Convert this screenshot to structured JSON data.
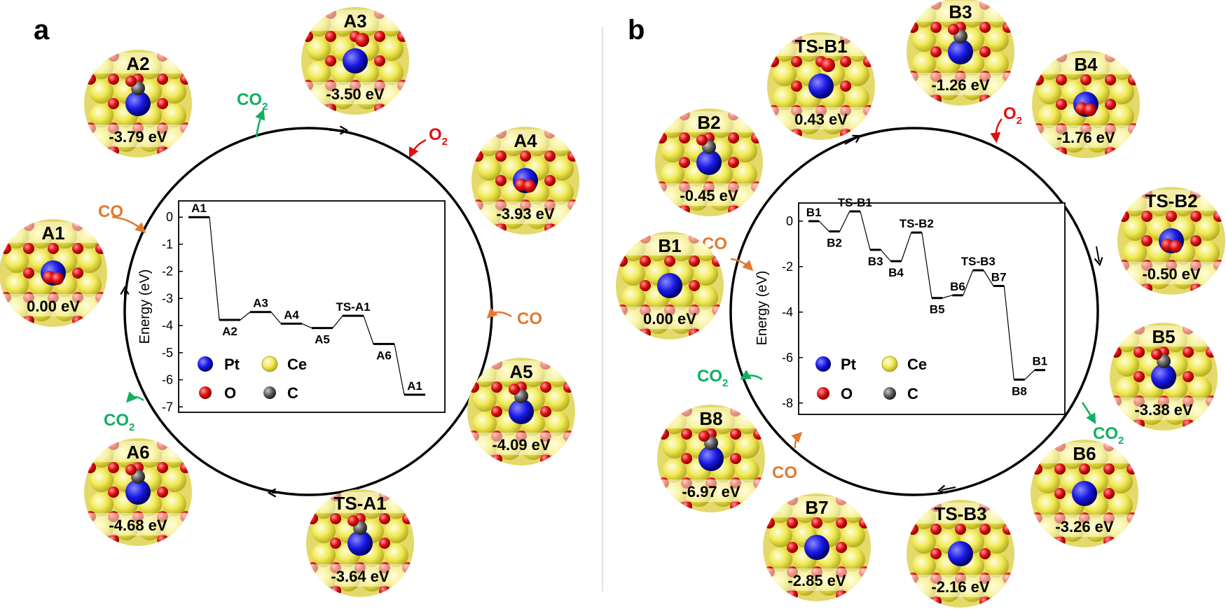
{
  "colors": {
    "pt": "#1a1ae6",
    "ce": "#f2ee5a",
    "o": "#e01010",
    "c": "#606060",
    "co": "#e07a30",
    "co2": "#10b060",
    "o2": "#e01010"
  },
  "legend": {
    "pt": "Pt",
    "ce": "Ce",
    "o": "O",
    "c": "C"
  },
  "molecules": {
    "co": "CO",
    "co2_base": "CO",
    "co2_sub": "2",
    "o2_base": "O",
    "o2_sub": "2"
  },
  "panel_a": {
    "letter": "a",
    "states": [
      {
        "name": "A1",
        "energy": "0.00 eV",
        "adsorbate": "o2"
      },
      {
        "name": "A2",
        "energy": "-3.79 eV",
        "adsorbate": "co"
      },
      {
        "name": "A3",
        "energy": "-3.50 eV",
        "adsorbate": "o"
      },
      {
        "name": "A4",
        "energy": "-3.93 eV",
        "adsorbate": "o2"
      },
      {
        "name": "A5",
        "energy": "-4.09 eV",
        "adsorbate": "co"
      },
      {
        "name": "TS-A1",
        "energy": "-3.64 eV",
        "adsorbate": "co"
      },
      {
        "name": "A6",
        "energy": "-4.68 eV",
        "adsorbate": "co"
      }
    ],
    "chart_data": {
      "type": "line",
      "ylabel": "Energy (eV)",
      "ylim": [
        -7.2,
        0.6
      ],
      "yticks": [
        0,
        -1,
        -2,
        -3,
        -4,
        -5,
        -6,
        -7
      ],
      "levels": [
        {
          "label": "A1",
          "value": 0.0
        },
        {
          "label": "A2",
          "value": -3.79
        },
        {
          "label": "A3",
          "value": -3.5
        },
        {
          "label": "A4",
          "value": -3.93
        },
        {
          "label": "A5",
          "value": -4.09
        },
        {
          "label": "TS-A1",
          "value": -3.64
        },
        {
          "label": "A6",
          "value": -4.68
        },
        {
          "label": "A1",
          "value": -6.55
        }
      ]
    }
  },
  "panel_b": {
    "letter": "b",
    "states": [
      {
        "name": "B1",
        "energy": "0.00 eV",
        "adsorbate": "none"
      },
      {
        "name": "B2",
        "energy": "-0.45 eV",
        "adsorbate": "co"
      },
      {
        "name": "TS-B1",
        "energy": "0.43 eV",
        "adsorbate": "o"
      },
      {
        "name": "B3",
        "energy": "-1.26 eV",
        "adsorbate": "co"
      },
      {
        "name": "B4",
        "energy": "-1.76 eV",
        "adsorbate": "o2"
      },
      {
        "name": "TS-B2",
        "energy": "-0.50 eV",
        "adsorbate": "o2"
      },
      {
        "name": "B5",
        "energy": "-3.38 eV",
        "adsorbate": "co"
      },
      {
        "name": "B6",
        "energy": "-3.26 eV",
        "adsorbate": "none"
      },
      {
        "name": "TS-B3",
        "energy": "-2.16 eV",
        "adsorbate": "none"
      },
      {
        "name": "B7",
        "energy": "-2.85 eV",
        "adsorbate": "none"
      },
      {
        "name": "B8",
        "energy": "-6.97 eV",
        "adsorbate": "co"
      }
    ],
    "chart_data": {
      "type": "line",
      "ylabel": "Energy (eV)",
      "ylim": [
        -8.5,
        0.8
      ],
      "yticks": [
        0,
        -2,
        -4,
        -6,
        -8
      ],
      "levels": [
        {
          "label": "B1",
          "value": 0.0
        },
        {
          "label": "B2",
          "value": -0.45
        },
        {
          "label": "TS-B1",
          "value": 0.43
        },
        {
          "label": "B3",
          "value": -1.26
        },
        {
          "label": "B4",
          "value": -1.76
        },
        {
          "label": "TS-B2",
          "value": -0.5
        },
        {
          "label": "B5",
          "value": -3.38
        },
        {
          "label": "B6",
          "value": -3.26
        },
        {
          "label": "TS-B3",
          "value": -2.16
        },
        {
          "label": "B7",
          "value": -2.85
        },
        {
          "label": "B8",
          "value": -6.97
        },
        {
          "label": "B1",
          "value": -6.55
        }
      ]
    }
  }
}
